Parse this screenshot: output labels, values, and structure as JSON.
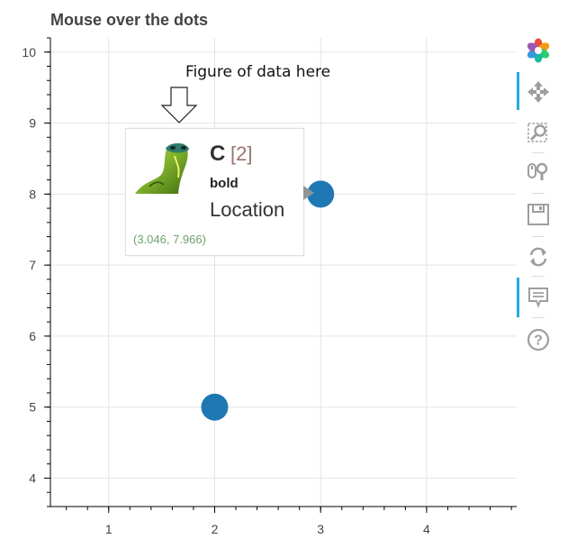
{
  "annotation": {
    "text": "Figure of data here"
  },
  "chart_data": {
    "type": "scatter",
    "title": "Mouse over the dots",
    "xlabel": "",
    "ylabel": "",
    "xlim": [
      0.45,
      4.85
    ],
    "ylim": [
      3.6,
      10.2
    ],
    "x_ticks": [
      1,
      2,
      3,
      4
    ],
    "y_ticks": [
      4,
      5,
      6,
      7,
      8,
      9,
      10
    ],
    "grid": true,
    "points": [
      {
        "x": 2,
        "y": 5
      },
      {
        "x": 3,
        "y": 8
      }
    ],
    "point_color": "#1f77b4"
  },
  "tooltip": {
    "letter": "C",
    "index": "[2]",
    "bold_text": "bold",
    "location_text": "Location",
    "coords": "(3.046, 7.966)",
    "image_icon": "snake-image"
  },
  "toolbar": {
    "items": [
      "bokeh-logo-icon",
      "pan-icon",
      "box-zoom-icon",
      "wheel-zoom-icon",
      "save-icon",
      "reset-icon",
      "hover-icon",
      "help-icon"
    ],
    "accent": "#26aae1"
  }
}
